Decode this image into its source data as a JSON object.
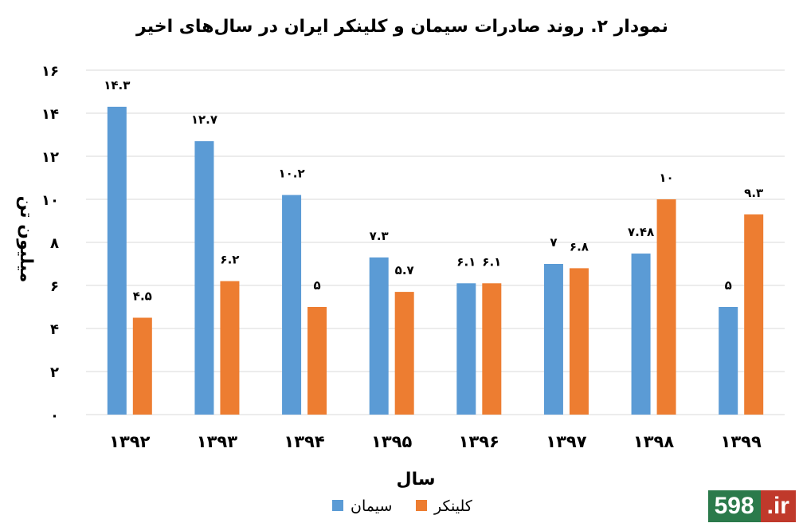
{
  "chart_data": {
    "type": "bar",
    "title": "نمودار ۲. روند صادرات سیمان و کلینکر ایران در سال‌های اخیر",
    "xlabel": "سال",
    "ylabel": "میلیون تن",
    "categories": [
      "۱۳۹۲",
      "۱۳۹۳",
      "۱۳۹۴",
      "۱۳۹۵",
      "۱۳۹۶",
      "۱۳۹۷",
      "۱۳۹۸",
      "۱۳۹۹"
    ],
    "ylim": [
      0,
      16
    ],
    "yticks": [
      0,
      2,
      4,
      6,
      8,
      10,
      12,
      14,
      16
    ],
    "ytick_labels": [
      "۰",
      "۲",
      "۴",
      "۶",
      "۸",
      "۱۰",
      "۱۲",
      "۱۴",
      "۱۶"
    ],
    "grid": true,
    "legend_position": "bottom",
    "series": [
      {
        "name": "سیمان",
        "color": "#5b9bd5",
        "values": [
          14.3,
          12.7,
          10.2,
          7.3,
          6.1,
          7,
          7.48,
          5
        ],
        "labels": [
          "۱۴.۳",
          "۱۲.۷",
          "۱۰.۲",
          "۷.۳",
          "۶.۱",
          "۷",
          "۷.۴۸",
          "۵"
        ]
      },
      {
        "name": "کلینکر",
        "color": "#ed7d31",
        "values": [
          4.5,
          6.2,
          5,
          5.7,
          6.1,
          6.8,
          10,
          9.3
        ],
        "labels": [
          "۴.۵",
          "۶.۲",
          "۵",
          "۵.۷",
          "۶.۱",
          "۶.۸",
          "۱۰",
          "۹.۳"
        ]
      }
    ]
  },
  "watermark": {
    "number": "598",
    "domain": ".ir"
  }
}
